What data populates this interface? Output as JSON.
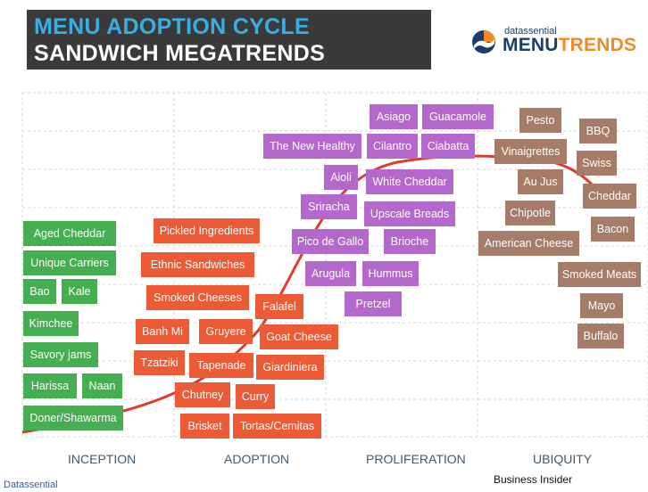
{
  "header": {
    "title_line1": "MENU ADOPTION CYCLE",
    "title_line2": "SANDWICH MEGATRENDS"
  },
  "logo": {
    "small": "datassential",
    "big_part1": "MENU",
    "big_part2": "TRENDS",
    "colors": {
      "navy": "#1c3d6b",
      "orange": "#f08a24"
    }
  },
  "colors": {
    "inception": "#45ae50",
    "adoption": "#ec5a36",
    "proliferation": "#b468cc",
    "ubiquity": "#a67c68",
    "curve": "#e03a2c",
    "title_accent": "#39aee3"
  },
  "stages": [
    "INCEPTION",
    "ADOPTION",
    "PROLIFERATION",
    "UBIQUITY"
  ],
  "items": {
    "inception": [
      "Aged Cheddar",
      "Unique Carriers",
      "Bao",
      "Kale",
      "Kimchee",
      "Savory jams",
      "Harissa",
      "Naan",
      "Doner/Shawarma"
    ],
    "adoption": [
      "Pickled Ingredients",
      "Ethnic Sandwiches",
      "Smoked Cheeses",
      "Banh Mi",
      "Gruyere",
      "Tzatziki",
      "Tapenade",
      "Chutney",
      "Curry",
      "Brisket",
      "Tortas/Cemitas",
      "Falafel",
      "Goat Cheese",
      "Giardiniera"
    ],
    "proliferation": [
      "Asiago",
      "Guacamole",
      "The New Healthy",
      "Cilantro",
      "Ciabatta",
      "Aioli",
      "White Cheddar",
      "Sriracha",
      "Upscale Breads",
      "Pico de Gallo",
      "Brioche",
      "Arugula",
      "Hummus",
      "Pretzel"
    ],
    "ubiquity": [
      "Pesto",
      "BBQ",
      "Vinaigrettes",
      "Swiss",
      "Au Jus",
      "Cheddar",
      "Chipotle",
      "Bacon",
      "American Cheese",
      "Smoked Meats",
      "Mayo",
      "Buffalo"
    ]
  },
  "footer": {
    "source": "Datassential",
    "credit": "Business Insider"
  }
}
